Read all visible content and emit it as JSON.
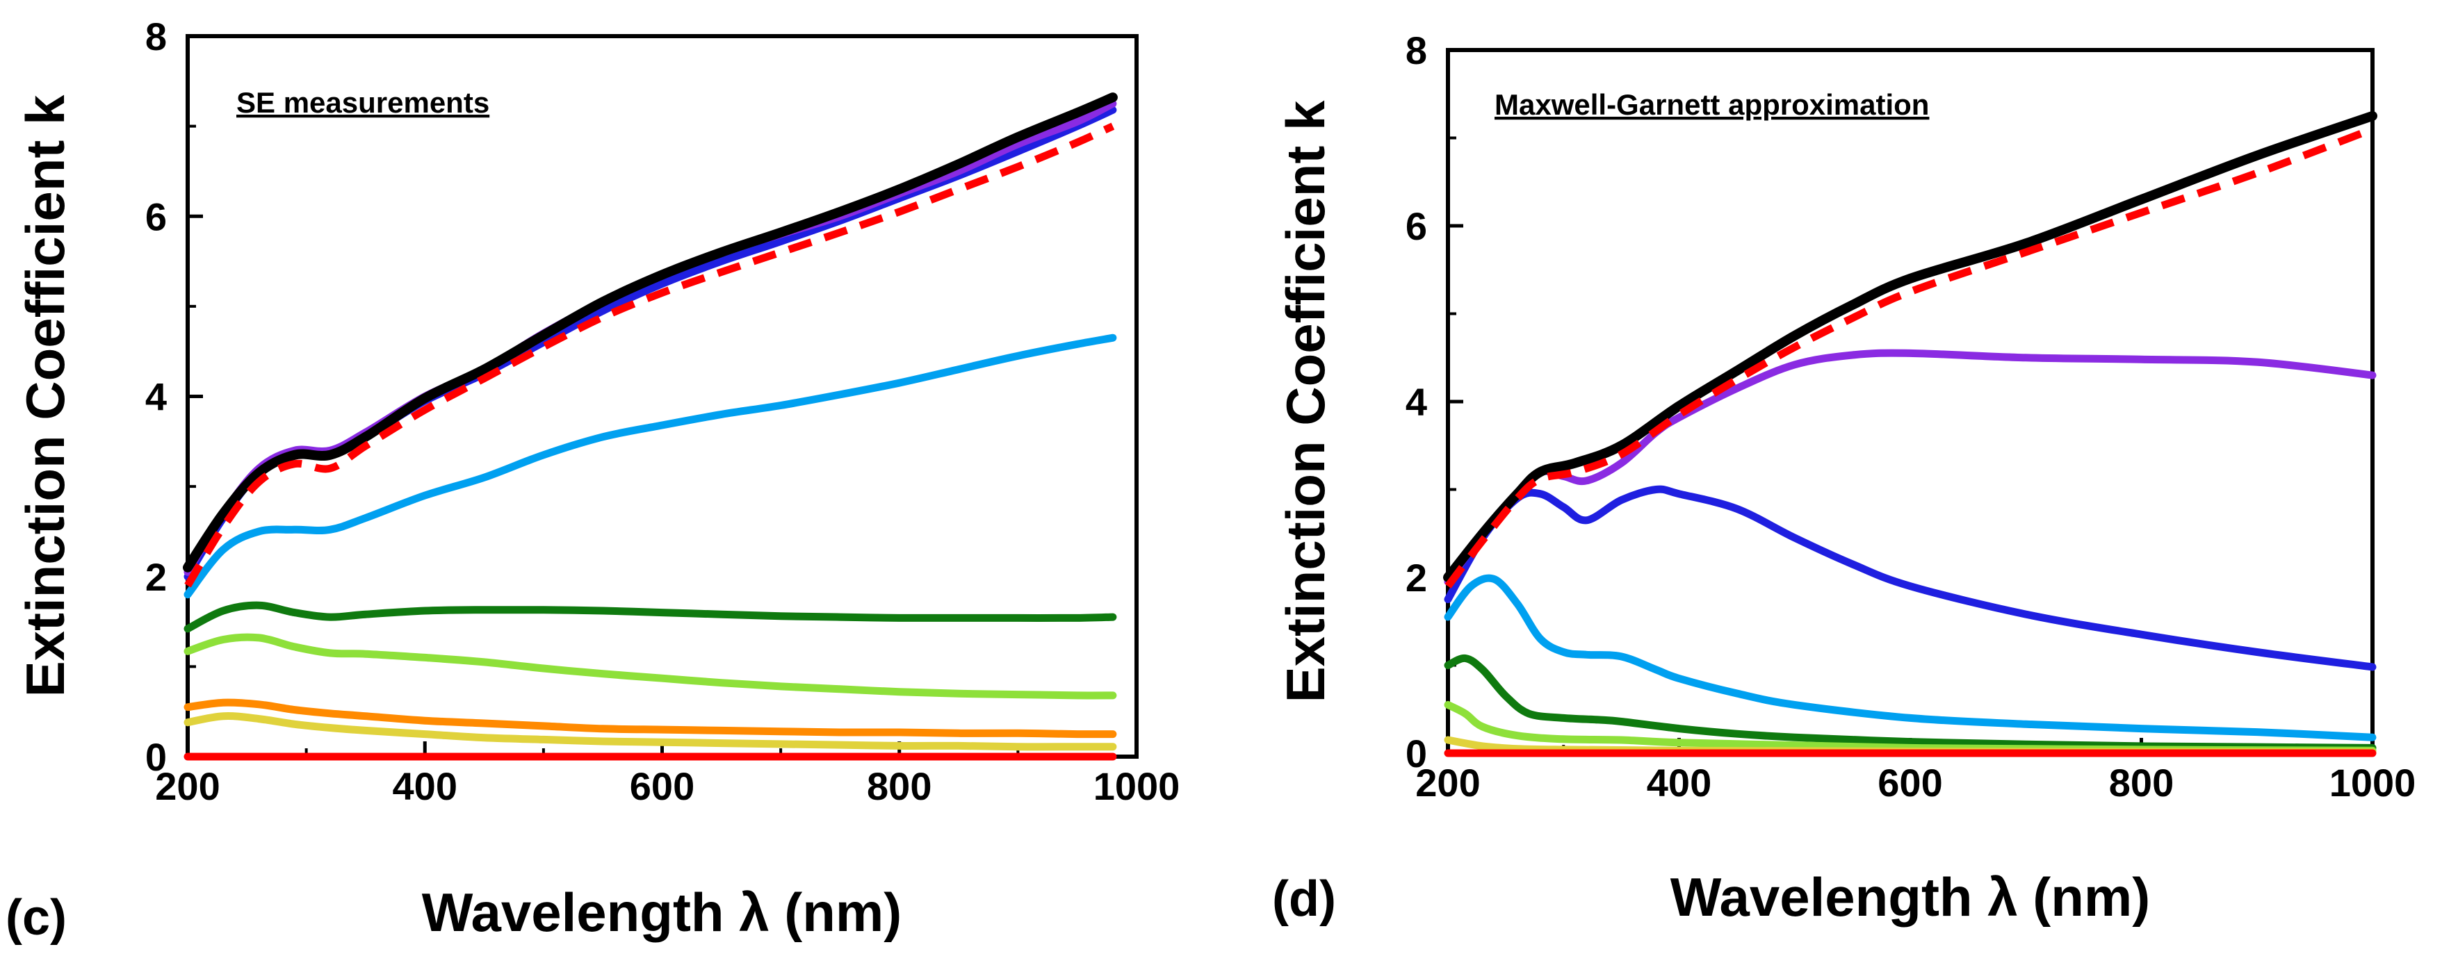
{
  "chart_data": [
    {
      "type": "line",
      "panel": "(c)",
      "annotation": "SE measurements",
      "xlabel": "Wavelength λ (nm)",
      "ylabel": "Extinction Coefficient k",
      "xlim": [
        200,
        1000
      ],
      "ylim": [
        0,
        8
      ],
      "xticks": [
        "200",
        "400",
        "600",
        "800",
        "1000"
      ],
      "yticks": [
        "0",
        "2",
        "4",
        "6",
        "8"
      ],
      "series": [
        {
          "name": "purple",
          "color": "#8a2be2",
          "dashed": false,
          "x": [
            200,
            230,
            260,
            290,
            320,
            350,
            400,
            450,
            500,
            550,
            600,
            650,
            700,
            750,
            800,
            850,
            900,
            950,
            980
          ],
          "y": [
            2.05,
            2.7,
            3.2,
            3.4,
            3.4,
            3.6,
            4.0,
            4.3,
            4.7,
            5.05,
            5.35,
            5.6,
            5.8,
            6.0,
            6.25,
            6.5,
            6.8,
            7.05,
            7.25
          ]
        },
        {
          "name": "blue",
          "color": "#1f1fe0",
          "dashed": false,
          "x": [
            200,
            230,
            260,
            290,
            320,
            350,
            400,
            450,
            500,
            550,
            600,
            650,
            700,
            750,
            800,
            850,
            900,
            950,
            980
          ],
          "y": [
            2.0,
            2.65,
            3.15,
            3.35,
            3.38,
            3.55,
            3.95,
            4.25,
            4.6,
            4.95,
            5.25,
            5.5,
            5.72,
            5.95,
            6.2,
            6.45,
            6.72,
            7.0,
            7.18
          ]
        },
        {
          "name": "black",
          "color": "#000000",
          "dashed": false,
          "x": [
            200,
            230,
            260,
            290,
            320,
            350,
            400,
            450,
            500,
            550,
            600,
            650,
            700,
            750,
            800,
            850,
            900,
            950,
            980
          ],
          "y": [
            2.1,
            2.7,
            3.15,
            3.35,
            3.35,
            3.55,
            3.98,
            4.3,
            4.68,
            5.05,
            5.35,
            5.6,
            5.82,
            6.05,
            6.3,
            6.58,
            6.88,
            7.15,
            7.32
          ]
        },
        {
          "name": "red-dashed",
          "color": "#ff0000",
          "dashed": true,
          "x": [
            200,
            230,
            260,
            290,
            320,
            350,
            400,
            450,
            500,
            550,
            600,
            650,
            700,
            750,
            800,
            850,
            900,
            950,
            980
          ],
          "y": [
            1.9,
            2.55,
            3.05,
            3.25,
            3.2,
            3.45,
            3.85,
            4.2,
            4.55,
            4.88,
            5.15,
            5.38,
            5.6,
            5.82,
            6.05,
            6.3,
            6.55,
            6.82,
            7.0
          ]
        },
        {
          "name": "light-blue",
          "color": "#00a0f0",
          "dashed": false,
          "x": [
            200,
            230,
            260,
            290,
            320,
            350,
            400,
            450,
            500,
            550,
            600,
            650,
            700,
            750,
            800,
            850,
            900,
            950,
            980
          ],
          "y": [
            1.8,
            2.3,
            2.5,
            2.52,
            2.52,
            2.65,
            2.9,
            3.1,
            3.35,
            3.55,
            3.68,
            3.8,
            3.9,
            4.02,
            4.15,
            4.3,
            4.45,
            4.58,
            4.65
          ]
        },
        {
          "name": "dark-green",
          "color": "#0f7a0f",
          "dashed": false,
          "x": [
            200,
            230,
            260,
            290,
            320,
            350,
            400,
            450,
            500,
            550,
            600,
            650,
            700,
            750,
            800,
            850,
            900,
            950,
            980
          ],
          "y": [
            1.42,
            1.62,
            1.68,
            1.6,
            1.55,
            1.58,
            1.62,
            1.63,
            1.63,
            1.62,
            1.6,
            1.58,
            1.56,
            1.55,
            1.54,
            1.54,
            1.54,
            1.54,
            1.55
          ]
        },
        {
          "name": "light-green",
          "color": "#8ee03a",
          "dashed": false,
          "x": [
            200,
            230,
            260,
            290,
            320,
            350,
            400,
            450,
            500,
            550,
            600,
            650,
            700,
            750,
            800,
            850,
            900,
            950,
            980
          ],
          "y": [
            1.17,
            1.3,
            1.32,
            1.22,
            1.15,
            1.14,
            1.1,
            1.05,
            0.98,
            0.92,
            0.87,
            0.82,
            0.78,
            0.75,
            0.72,
            0.7,
            0.69,
            0.68,
            0.68
          ]
        },
        {
          "name": "orange",
          "color": "#ff8a00",
          "dashed": false,
          "x": [
            200,
            230,
            260,
            290,
            320,
            350,
            400,
            450,
            500,
            550,
            600,
            650,
            700,
            750,
            800,
            850,
            900,
            950,
            980
          ],
          "y": [
            0.55,
            0.6,
            0.58,
            0.52,
            0.48,
            0.45,
            0.4,
            0.37,
            0.34,
            0.31,
            0.3,
            0.29,
            0.28,
            0.27,
            0.27,
            0.26,
            0.26,
            0.25,
            0.25
          ]
        },
        {
          "name": "yellow",
          "color": "#e0d23c",
          "dashed": false,
          "x": [
            200,
            230,
            260,
            290,
            320,
            350,
            400,
            450,
            500,
            550,
            600,
            650,
            700,
            750,
            800,
            850,
            900,
            950,
            980
          ],
          "y": [
            0.38,
            0.45,
            0.42,
            0.36,
            0.32,
            0.29,
            0.25,
            0.21,
            0.19,
            0.17,
            0.16,
            0.15,
            0.14,
            0.13,
            0.12,
            0.12,
            0.11,
            0.11,
            0.11
          ]
        },
        {
          "name": "red-base",
          "color": "#ff0000",
          "dashed": false,
          "x": [
            200,
            600,
            980
          ],
          "y": [
            0.0,
            0.0,
            0.0
          ]
        }
      ]
    },
    {
      "type": "line",
      "panel": "(d)",
      "annotation": "Maxwell-Garnett approximation",
      "xlabel": "Wavelength λ (nm)",
      "ylabel": "Extinction Coefficient k",
      "xlim": [
        200,
        1000
      ],
      "ylim": [
        0,
        8
      ],
      "xticks": [
        "200",
        "400",
        "600",
        "800",
        "1000"
      ],
      "yticks": [
        "0",
        "2",
        "4",
        "6",
        "8"
      ],
      "series": [
        {
          "name": "black",
          "color": "#000000",
          "dashed": false,
          "x": [
            200,
            230,
            260,
            280,
            310,
            350,
            400,
            450,
            500,
            550,
            600,
            700,
            800,
            900,
            1000
          ],
          "y": [
            2.0,
            2.5,
            2.95,
            3.2,
            3.3,
            3.5,
            3.95,
            4.35,
            4.75,
            5.1,
            5.4,
            5.8,
            6.3,
            6.8,
            7.25
          ]
        },
        {
          "name": "red-dashed",
          "color": "#ff0000",
          "dashed": true,
          "x": [
            200,
            230,
            260,
            280,
            310,
            350,
            400,
            450,
            500,
            550,
            600,
            700,
            800,
            900,
            1000
          ],
          "y": [
            1.9,
            2.42,
            2.9,
            3.12,
            3.2,
            3.4,
            3.85,
            4.25,
            4.62,
            4.95,
            5.25,
            5.7,
            6.15,
            6.6,
            7.1
          ]
        },
        {
          "name": "purple",
          "color": "#8a2be2",
          "dashed": false,
          "x": [
            200,
            230,
            260,
            280,
            300,
            320,
            350,
            380,
            400,
            450,
            500,
            550,
            600,
            700,
            800,
            900,
            1000
          ],
          "y": [
            1.95,
            2.5,
            2.95,
            3.2,
            3.15,
            3.1,
            3.3,
            3.65,
            3.82,
            4.15,
            4.42,
            4.53,
            4.55,
            4.5,
            4.48,
            4.45,
            4.3
          ]
        },
        {
          "name": "blue",
          "color": "#1f1fe0",
          "dashed": false,
          "x": [
            200,
            230,
            260,
            280,
            300,
            320,
            350,
            380,
            400,
            450,
            500,
            550,
            600,
            700,
            800,
            900,
            1000
          ],
          "y": [
            1.75,
            2.45,
            2.9,
            2.95,
            2.8,
            2.65,
            2.88,
            3.0,
            2.95,
            2.78,
            2.45,
            2.15,
            1.9,
            1.58,
            1.35,
            1.15,
            0.98
          ]
        },
        {
          "name": "light-blue",
          "color": "#00a0f0",
          "dashed": false,
          "x": [
            200,
            220,
            240,
            260,
            280,
            300,
            320,
            350,
            380,
            400,
            450,
            500,
            600,
            700,
            800,
            900,
            1000
          ],
          "y": [
            1.55,
            1.9,
            1.98,
            1.7,
            1.3,
            1.15,
            1.12,
            1.1,
            0.95,
            0.85,
            0.68,
            0.55,
            0.4,
            0.33,
            0.28,
            0.24,
            0.18
          ]
        },
        {
          "name": "dark-green",
          "color": "#0f7a0f",
          "dashed": false,
          "x": [
            200,
            215,
            230,
            250,
            270,
            300,
            330,
            350,
            400,
            450,
            500,
            600,
            700,
            800,
            900,
            1000
          ],
          "y": [
            1.0,
            1.08,
            0.95,
            0.65,
            0.45,
            0.4,
            0.38,
            0.36,
            0.28,
            0.22,
            0.18,
            0.13,
            0.1,
            0.08,
            0.07,
            0.06
          ]
        },
        {
          "name": "light-green",
          "color": "#8ee03a",
          "dashed": false,
          "x": [
            200,
            215,
            230,
            260,
            300,
            350,
            400,
            500,
            600,
            700,
            800,
            1000
          ],
          "y": [
            0.55,
            0.45,
            0.3,
            0.2,
            0.16,
            0.15,
            0.12,
            0.09,
            0.06,
            0.05,
            0.04,
            0.03
          ]
        },
        {
          "name": "yellow",
          "color": "#e0d23c",
          "dashed": false,
          "x": [
            200,
            230,
            260,
            300,
            400,
            600,
            1000
          ],
          "y": [
            0.15,
            0.08,
            0.05,
            0.04,
            0.03,
            0.02,
            0.01
          ]
        },
        {
          "name": "red-base",
          "color": "#ff0000",
          "dashed": false,
          "x": [
            200,
            600,
            1000
          ],
          "y": [
            0.0,
            0.0,
            0.0
          ]
        }
      ]
    }
  ]
}
